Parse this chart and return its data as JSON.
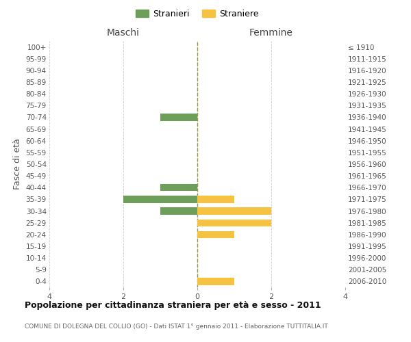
{
  "age_groups": [
    "100+",
    "95-99",
    "90-94",
    "85-89",
    "80-84",
    "75-79",
    "70-74",
    "65-69",
    "60-64",
    "55-59",
    "50-54",
    "45-49",
    "40-44",
    "35-39",
    "30-34",
    "25-29",
    "20-24",
    "15-19",
    "10-14",
    "5-9",
    "0-4"
  ],
  "birth_years": [
    "≤ 1910",
    "1911-1915",
    "1916-1920",
    "1921-1925",
    "1926-1930",
    "1931-1935",
    "1936-1940",
    "1941-1945",
    "1946-1950",
    "1951-1955",
    "1956-1960",
    "1961-1965",
    "1966-1970",
    "1971-1975",
    "1976-1980",
    "1981-1985",
    "1986-1990",
    "1991-1995",
    "1996-2000",
    "2001-2005",
    "2006-2010"
  ],
  "males": [
    0,
    0,
    0,
    0,
    0,
    0,
    -1,
    0,
    0,
    0,
    0,
    0,
    -1,
    -2,
    -1,
    0,
    0,
    0,
    0,
    0,
    0
  ],
  "females": [
    0,
    0,
    0,
    0,
    0,
    0,
    0,
    0,
    0,
    0,
    0,
    0,
    0,
    1,
    2,
    2,
    1,
    0,
    0,
    0,
    1
  ],
  "male_color": "#6d9e5a",
  "female_color": "#f5c242",
  "title": "Popolazione per cittadinanza straniera per età e sesso - 2011",
  "subtitle": "COMUNE DI DOLEGNA DEL COLLIO (GO) - Dati ISTAT 1° gennaio 2011 - Elaborazione TUTTITALIA.IT",
  "xlabel_left": "Maschi",
  "xlabel_right": "Femmine",
  "ylabel_left": "Fasce di età",
  "legend_stranieri": "Stranieri",
  "legend_straniere": "Straniere",
  "xlim": 4,
  "background_color": "#ffffff",
  "grid_color": "#d0d0d0"
}
